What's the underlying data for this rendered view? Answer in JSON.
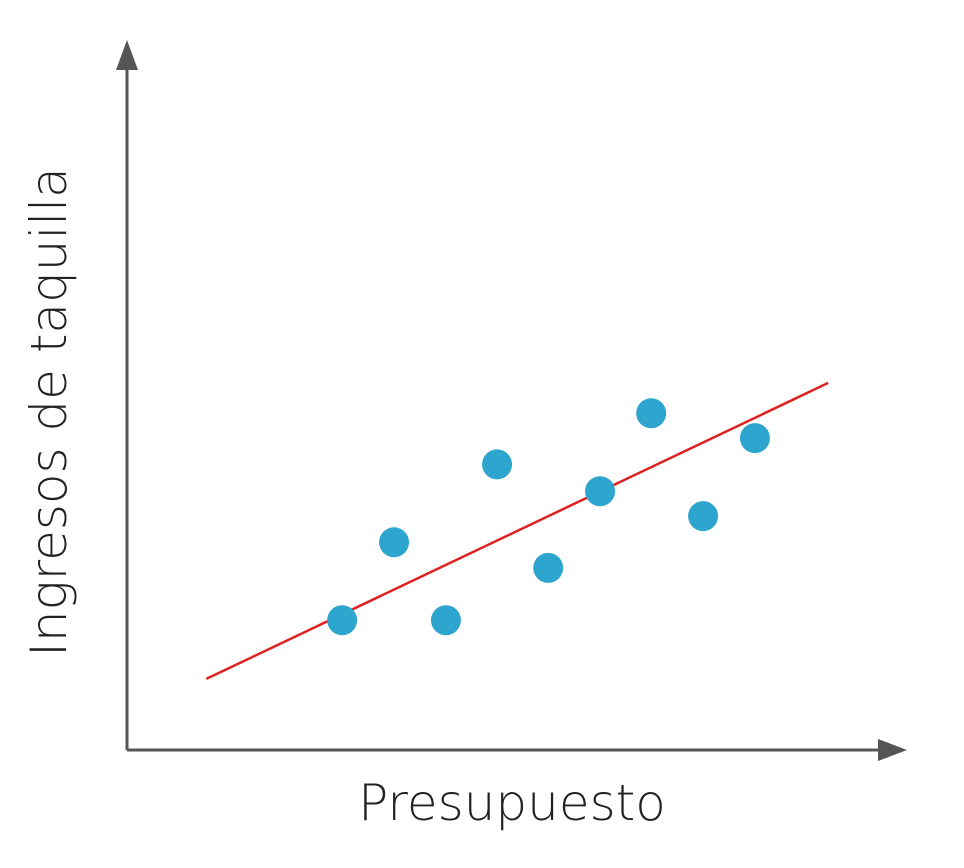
{
  "chart_data": {
    "type": "scatter",
    "x_label": "Presupuesto",
    "y_label": "Ingresos de taquilla",
    "xlim": [
      0,
      10
    ],
    "ylim": [
      0,
      10
    ],
    "x": [
      2.82,
      3.5,
      4.18,
      4.85,
      5.52,
      6.2,
      6.87,
      7.55,
      8.23
    ],
    "values": [
      1.88,
      3.01,
      1.88,
      4.14,
      2.64,
      3.75,
      4.88,
      3.39,
      4.52
    ],
    "color": "#2ea5cf",
    "trend": {
      "x": [
        1.04,
        9.19
      ],
      "values": [
        1.03,
        5.32
      ],
      "color": "#dd2222"
    },
    "axis_color": "#555555"
  }
}
